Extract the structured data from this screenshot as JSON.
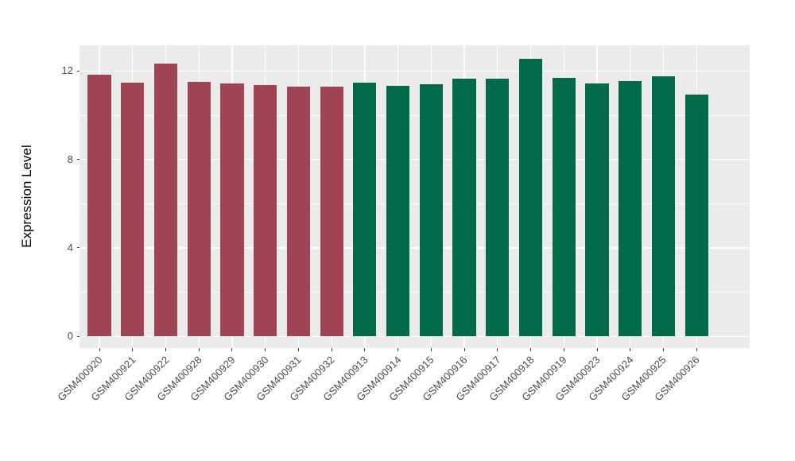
{
  "chart_data": {
    "type": "bar",
    "title": "",
    "xlabel": "",
    "ylabel": "Expression Level",
    "categories": [
      "GSM400920",
      "GSM400921",
      "GSM400922",
      "GSM400928",
      "GSM400929",
      "GSM400930",
      "GSM400931",
      "GSM400932",
      "GSM400913",
      "GSM400914",
      "GSM400915",
      "GSM400916",
      "GSM400917",
      "GSM400918",
      "GSM400919",
      "GSM400923",
      "GSM400924",
      "GSM400925",
      "GSM400926"
    ],
    "values": [
      11.82,
      11.48,
      12.33,
      11.5,
      11.45,
      11.36,
      11.28,
      11.28,
      11.48,
      11.33,
      11.4,
      11.64,
      11.67,
      12.54,
      11.68,
      11.42,
      11.53,
      11.75,
      10.95
    ],
    "groups": [
      "group1",
      "group1",
      "group1",
      "group1",
      "group1",
      "group1",
      "group1",
      "group1",
      "group2",
      "group2",
      "group2",
      "group2",
      "group2",
      "group2",
      "group2",
      "group2",
      "group2",
      "group2",
      "group2"
    ],
    "group_colors": {
      "group1": "#9E4452",
      "group2": "#006A4B"
    },
    "y_ticks": [
      0,
      4,
      8,
      12
    ],
    "y_tick_labels": [
      "0",
      "4",
      "8",
      "12"
    ],
    "y_minor_ticks": [
      2,
      6,
      10
    ],
    "ylim": [
      -0.55,
      13.15
    ],
    "grid": "on",
    "legend_position": "none",
    "panel_background": "#EBEBEB",
    "gridline_color": "#FFFFFF",
    "tick_color": "#333333",
    "tick_label_color": "#4D4D4D",
    "axis_title_color": "#000000"
  }
}
